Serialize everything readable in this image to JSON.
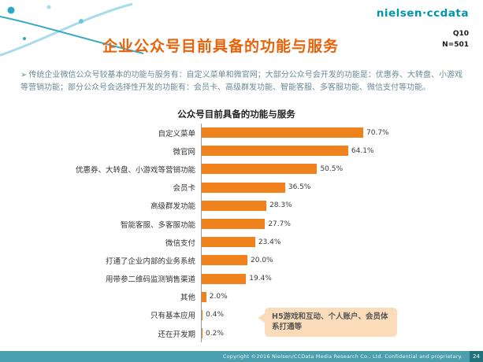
{
  "logo": {
    "text": "nielsen·ccdata"
  },
  "meta": {
    "question": "Q10",
    "sample": "N=501"
  },
  "title": "企业公众号目前具备的功能与服务",
  "intro_bullet": "➢",
  "intro": "传统企业微信公众号较基本的功能与服务有：自定义菜单和微官网；大部分公众号会开发的功能是：优惠券、大转盘、小游戏等营销功能；部分公众号会选择性开发的功能有：会员卡、高级群发功能、智能客服、多客服功能、微信支付等功能。",
  "chart_data": {
    "type": "bar",
    "orientation": "horizontal",
    "title": "公众号目前具备的功能与服务",
    "categories": [
      "自定义菜单",
      "微官网",
      "优惠券、大转盘、小游戏等营销功能",
      "会员卡",
      "高级群发功能",
      "智能客服、多客服功能",
      "微信支付",
      "打通了企业内部的业务系统",
      "用带参二维码监测销售渠道",
      "其他",
      "只有基本应用",
      "还在开发期"
    ],
    "values": [
      70.7,
      64.1,
      50.5,
      36.5,
      28.3,
      27.7,
      23.4,
      20.0,
      19.4,
      2.0,
      0.4,
      0.2
    ],
    "value_labels": [
      "70.7%",
      "64.1%",
      "50.5%",
      "36.5%",
      "28.3%",
      "27.7%",
      "23.4%",
      "20.0%",
      "19.4%",
      "2.0%",
      "0.4%",
      "0.2%"
    ],
    "xlim": [
      0,
      80
    ],
    "bar_color": "#F0821E",
    "legend": "none",
    "grid": "off"
  },
  "callout": {
    "text": "H5游戏和互动、个人账户、会员体系打通等"
  },
  "footer": {
    "copyright": "Copyright ©2016 Nielsen/CCData Media Research Co., Ltd. Confidential and proprietary.",
    "page": "24"
  },
  "colors": {
    "title_orange": "#E8630A",
    "bar_orange": "#F0821E",
    "teal_accent": "#2AA8C4",
    "footer_teal": "#4C9FAE",
    "callout_bg": "#FBDCBA"
  }
}
